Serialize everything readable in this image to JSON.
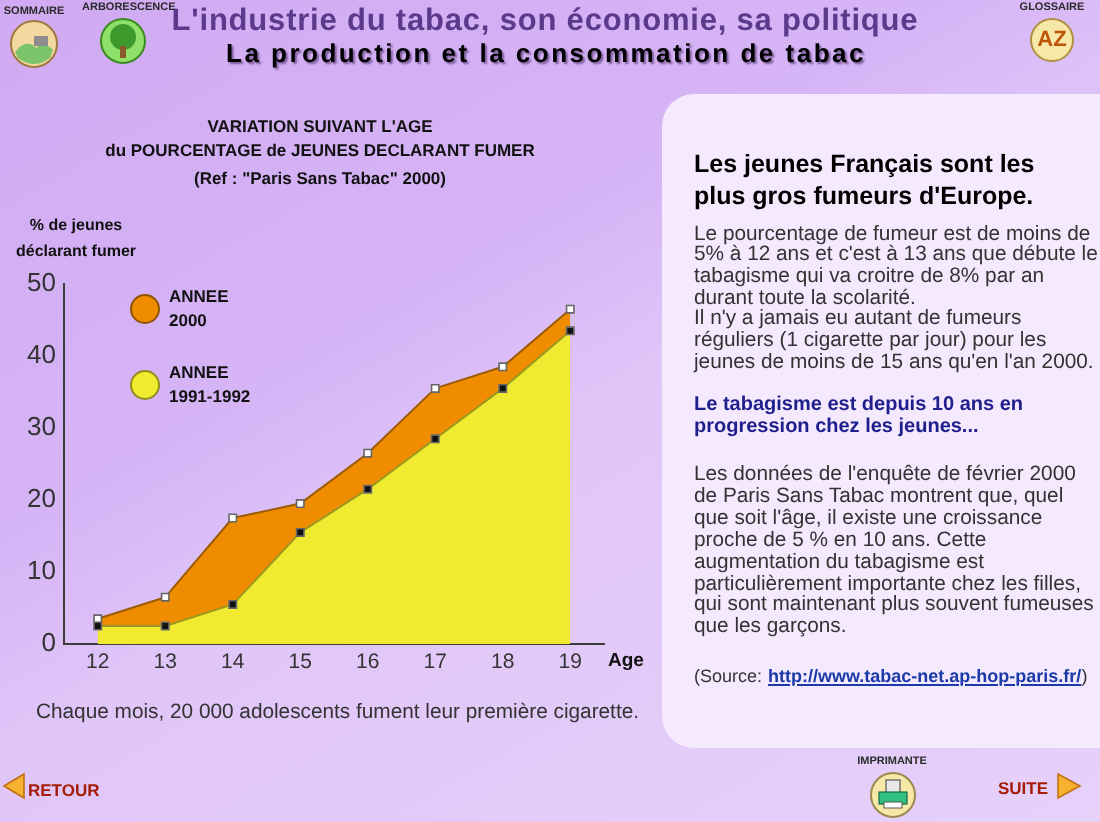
{
  "chart_data": {
    "type": "area",
    "title": "VARIATION SUIVANT L'AGE\ndu POURCENTAGE de JEUNES DECLARANT FUMER",
    "subtitle": "(Ref : \"Paris Sans Tabac\" 2000)",
    "xlabel": "Age",
    "ylabel": "% de jeunes déclarant fumer",
    "x": [
      12,
      13,
      14,
      15,
      16,
      17,
      18,
      19
    ],
    "series": [
      {
        "name": "ANNEE 2000",
        "color": "#f08c00",
        "values": [
          3.5,
          6.5,
          17.5,
          19.5,
          26.5,
          35.5,
          38.5,
          46.5
        ]
      },
      {
        "name": "ANNEE 1991-1992",
        "color": "#f0ea30",
        "values": [
          2.5,
          2.5,
          5.5,
          15.5,
          21.5,
          28.5,
          35.5,
          43.5
        ]
      }
    ],
    "xlim": [
      11.5,
      19.5
    ],
    "xticks": [
      12,
      13,
      14,
      15,
      16,
      17,
      18,
      19
    ],
    "ylim": [
      0,
      50
    ],
    "yticks": [
      0,
      10,
      20,
      30,
      40,
      50
    ],
    "legend": "top left",
    "marker": "square",
    "annotations": [
      "L'industrie du tabac, son économie, sa politique",
      "La production et la consommation de tabac",
      "SOMMAIRE",
      "ARBORESCENCE",
      "GLOSSAIRE",
      "AZ",
      "Les jeunes Français sont les plus gros fumeurs d'Europe.",
      "Le pourcentage de fumeur est de moins de 5% à 12 ans et c'est à 13 ans que débute le tabagisme qui va croitre de 8% par an durant toute la scolarité.",
      "Il n'y a jamais eu autant de fumeurs réguliers (1 cigarette par jour) pour les jeunes de moins de 15 ans qu'en l'an 2000.",
      "Le tabagisme est depuis 10 ans en progression chez les jeunes...",
      "Les données de l'enquête de février 2000 de Paris Sans Tabac montrent que, quel que soit l'âge, il existe une croissance proche de 5 % en 10 ans. Cette augmentation du tabagisme est particulièrement importante chez les filles, qui sont maintenant plus souvent fumeuses que les garçons.",
      "(Source:",
      "http://www.tabac-net.ap-hop-paris.fr/",
      ")",
      "Chaque mois, 20 000 adolescents fument leur première cigarette.",
      "IMPRIMANTE",
      "RETOUR",
      "SUITE"
    ]
  }
}
